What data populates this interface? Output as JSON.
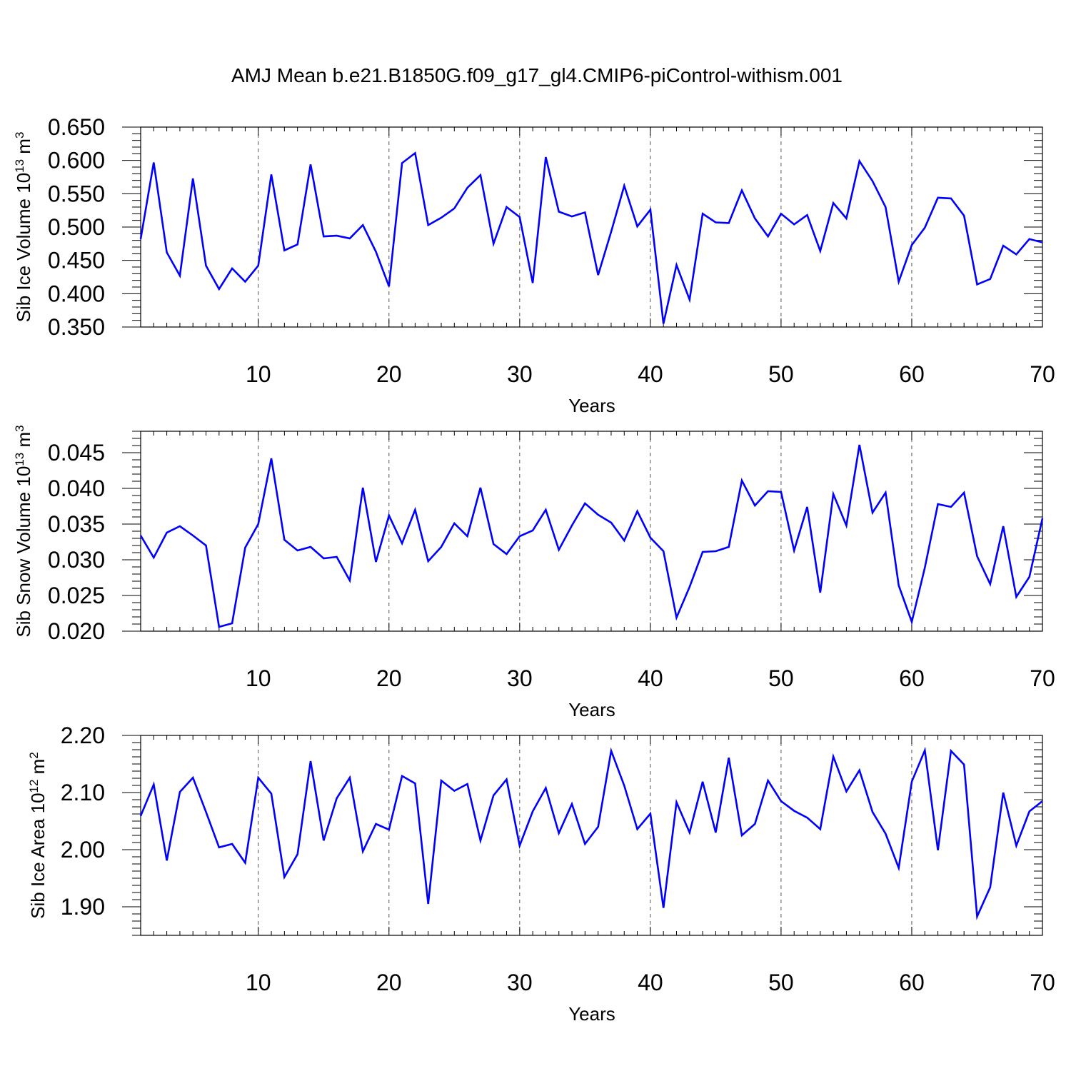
{
  "title": "AMJ Mean b.e21.B1850G.f09_g17_gl4.CMIP6-piControl-withism.001",
  "line_color": "#0000ff",
  "chart_data": [
    {
      "type": "line",
      "ylabel": "Sib Ice Volume 10",
      "ylabel_sup": "13",
      "ylabel_unit": "m",
      "ylabel_unit_sup": "3",
      "xlabel": "Years",
      "xlim": [
        1,
        70
      ],
      "ylim": [
        0.35,
        0.65
      ],
      "yticks": [
        "0.350",
        "0.400",
        "0.450",
        "0.500",
        "0.550",
        "0.600",
        "0.650"
      ],
      "xticks": [
        "10",
        "20",
        "30",
        "40",
        "50",
        "60",
        "70"
      ],
      "x": [
        1,
        2,
        3,
        4,
        5,
        6,
        7,
        8,
        9,
        10,
        11,
        12,
        13,
        14,
        15,
        16,
        17,
        18,
        19,
        20,
        21,
        22,
        23,
        24,
        25,
        26,
        27,
        28,
        29,
        30,
        31,
        32,
        33,
        34,
        35,
        36,
        37,
        38,
        39,
        40,
        41,
        42,
        43,
        44,
        45,
        46,
        47,
        48,
        49,
        50,
        51,
        52,
        53,
        54,
        55,
        56,
        57,
        58,
        59,
        60,
        61,
        62,
        63,
        64,
        65,
        66,
        67,
        68,
        69,
        70
      ],
      "values": [
        0.482,
        0.597,
        0.462,
        0.427,
        0.573,
        0.442,
        0.407,
        0.438,
        0.418,
        0.442,
        0.579,
        0.465,
        0.474,
        0.594,
        0.486,
        0.487,
        0.483,
        0.503,
        0.463,
        0.411,
        0.596,
        0.611,
        0.503,
        0.514,
        0.528,
        0.559,
        0.578,
        0.475,
        0.53,
        0.515,
        0.416,
        0.605,
        0.523,
        0.516,
        0.522,
        0.428,
        0.493,
        0.562,
        0.501,
        0.526,
        0.355,
        0.443,
        0.391,
        0.52,
        0.507,
        0.506,
        0.555,
        0.513,
        0.486,
        0.52,
        0.504,
        0.518,
        0.464,
        0.536,
        0.513,
        0.599,
        0.569,
        0.53,
        0.418,
        0.473,
        0.499,
        0.544,
        0.543,
        0.517,
        0.414,
        0.422,
        0.472,
        0.459,
        0.482,
        0.477
      ]
    },
    {
      "type": "line",
      "ylabel": "Sib Snow Volume 10",
      "ylabel_sup": "13",
      "ylabel_unit": "m",
      "ylabel_unit_sup": "3",
      "xlabel": "Years",
      "xlim": [
        1,
        70
      ],
      "ylim": [
        0.02,
        0.048
      ],
      "yticks": [
        "0.020",
        "0.025",
        "0.030",
        "0.035",
        "0.040",
        "0.045"
      ],
      "xticks": [
        "10",
        "20",
        "30",
        "40",
        "50",
        "60",
        "70"
      ],
      "x": [
        1,
        2,
        3,
        4,
        5,
        6,
        7,
        8,
        9,
        10,
        11,
        12,
        13,
        14,
        15,
        16,
        17,
        18,
        19,
        20,
        21,
        22,
        23,
        24,
        25,
        26,
        27,
        28,
        29,
        30,
        31,
        32,
        33,
        34,
        35,
        36,
        37,
        38,
        39,
        40,
        41,
        42,
        43,
        44,
        45,
        46,
        47,
        48,
        49,
        50,
        51,
        52,
        53,
        54,
        55,
        56,
        57,
        58,
        59,
        60,
        61,
        62,
        63,
        64,
        65,
        66,
        67,
        68,
        69,
        70
      ],
      "values": [
        0.0334,
        0.0303,
        0.0338,
        0.0347,
        0.0334,
        0.032,
        0.0206,
        0.0211,
        0.0317,
        0.035,
        0.0442,
        0.0328,
        0.0313,
        0.0318,
        0.0302,
        0.0304,
        0.0271,
        0.0401,
        0.0297,
        0.0362,
        0.0323,
        0.037,
        0.0298,
        0.0318,
        0.0351,
        0.0333,
        0.0401,
        0.0322,
        0.0308,
        0.0333,
        0.0341,
        0.037,
        0.0314,
        0.0348,
        0.0379,
        0.0363,
        0.0352,
        0.0327,
        0.0368,
        0.0331,
        0.0312,
        0.0219,
        0.0262,
        0.0311,
        0.0312,
        0.0318,
        0.0411,
        0.0376,
        0.0396,
        0.0395,
        0.0313,
        0.0374,
        0.0254,
        0.0392,
        0.0348,
        0.0461,
        0.0366,
        0.0394,
        0.0264,
        0.0213,
        0.0289,
        0.0378,
        0.0374,
        0.0394,
        0.0305,
        0.0266,
        0.0347,
        0.0248,
        0.0276,
        0.0358
      ]
    },
    {
      "type": "line",
      "ylabel": "Sib Ice Area 10",
      "ylabel_sup": "12",
      "ylabel_unit": "m",
      "ylabel_unit_sup": "2",
      "xlabel": "Years",
      "xlim": [
        1,
        70
      ],
      "ylim": [
        1.85,
        2.2
      ],
      "yticks": [
        "1.90",
        "2.00",
        "2.10",
        "2.20"
      ],
      "xticks": [
        "10",
        "20",
        "30",
        "40",
        "50",
        "60",
        "70"
      ],
      "x": [
        1,
        2,
        3,
        4,
        5,
        6,
        7,
        8,
        9,
        10,
        11,
        12,
        13,
        14,
        15,
        16,
        17,
        18,
        19,
        20,
        21,
        22,
        23,
        24,
        25,
        26,
        27,
        28,
        29,
        30,
        31,
        32,
        33,
        34,
        35,
        36,
        37,
        38,
        39,
        40,
        41,
        42,
        43,
        44,
        45,
        46,
        47,
        48,
        49,
        50,
        51,
        52,
        53,
        54,
        55,
        56,
        57,
        58,
        59,
        60,
        61,
        62,
        63,
        64,
        65,
        66,
        67,
        68,
        69,
        70
      ],
      "values": [
        2.059,
        2.114,
        1.981,
        2.101,
        2.126,
        2.066,
        2.004,
        2.01,
        1.977,
        2.126,
        2.098,
        1.952,
        1.992,
        2.155,
        2.016,
        2.09,
        2.126,
        1.997,
        2.045,
        2.035,
        2.129,
        2.116,
        1.905,
        2.121,
        2.103,
        2.115,
        2.016,
        2.095,
        2.123,
        2.007,
        2.067,
        2.108,
        2.029,
        2.08,
        2.01,
        2.04,
        2.173,
        2.112,
        2.036,
        2.063,
        1.898,
        2.083,
        2.03,
        2.119,
        2.03,
        2.161,
        2.025,
        2.045,
        2.121,
        2.085,
        2.068,
        2.056,
        2.036,
        2.163,
        2.102,
        2.139,
        2.066,
        2.028,
        1.968,
        2.119,
        2.174,
        1.999,
        2.173,
        2.149,
        1.883,
        1.934,
        2.1,
        2.007,
        2.067,
        2.085
      ]
    }
  ]
}
